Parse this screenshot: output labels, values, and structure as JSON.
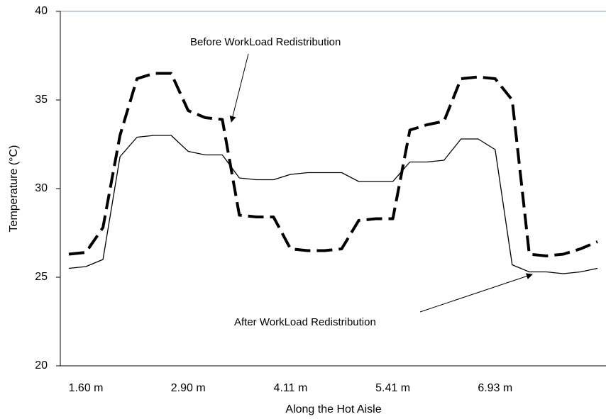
{
  "chart_data": {
    "type": "line",
    "x_label": "Along the Hot Aisle",
    "y_label": "Temperature (°C)",
    "categories": [
      null,
      "1.60 m",
      null,
      null,
      null,
      null,
      null,
      "2.90 m",
      null,
      null,
      null,
      null,
      null,
      "4.11 m",
      null,
      null,
      null,
      null,
      null,
      "5.41 m",
      null,
      null,
      null,
      null,
      null,
      "6.93 m",
      null,
      null,
      null,
      null,
      null,
      null
    ],
    "series": [
      {
        "color": "#000000",
        "line_style": "dashed",
        "line_width": 4,
        "values": [
          26.3,
          26.4,
          27.8,
          33.0,
          36.2,
          36.5,
          36.5,
          34.4,
          34.0,
          33.9,
          28.5,
          28.4,
          28.4,
          26.6,
          26.5,
          26.5,
          26.6,
          28.2,
          28.3,
          28.3,
          33.3,
          33.6,
          33.8,
          36.2,
          36.3,
          36.2,
          35.0,
          26.3,
          26.2,
          26.3,
          26.6,
          27.0
        ]
      },
      {
        "color": "#000000",
        "line_style": "solid",
        "line_width": 1.3,
        "values": [
          25.5,
          25.6,
          26.0,
          31.8,
          32.9,
          33.0,
          33.0,
          32.1,
          31.9,
          31.9,
          30.6,
          30.5,
          30.5,
          30.8,
          30.9,
          30.9,
          30.9,
          30.4,
          30.4,
          30.4,
          31.5,
          31.5,
          31.6,
          32.8,
          32.8,
          32.2,
          25.7,
          25.3,
          25.3,
          25.2,
          25.3,
          25.5
        ]
      }
    ],
    "annotations": [
      "Before WorkLoad Redistribution",
      "After WorkLoad Redistribution"
    ],
    "ylim": [
      20,
      40
    ],
    "yticks": [
      20,
      25,
      30,
      35,
      40
    ],
    "grid": false
  }
}
